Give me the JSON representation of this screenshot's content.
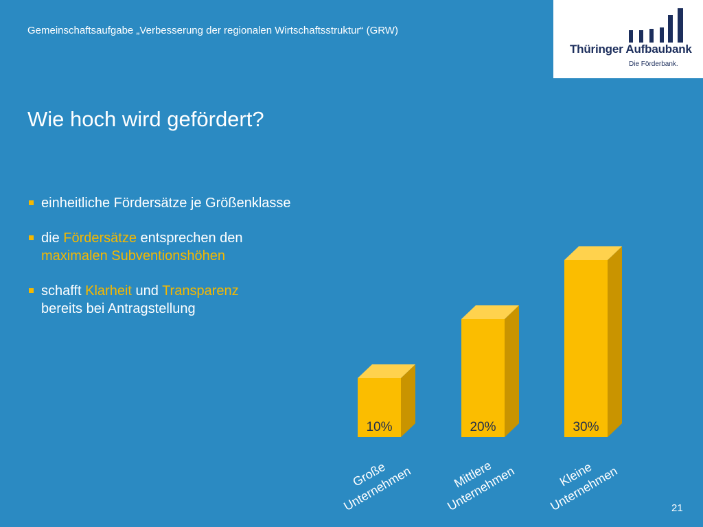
{
  "header": {
    "subtitle": "Gemeinschaftsaufgabe „Verbesserung der regionalen Wirtschaftsstruktur“ (GRW)"
  },
  "logo": {
    "name": "Thüringer Aufbaubank",
    "tagline": "Die Förderbank.",
    "color": "#1c2e5c"
  },
  "slide": {
    "title": "Wie hoch wird gefördert?",
    "page_number": "21"
  },
  "bullets": [
    {
      "parts": [
        "einheitliche Fördersätze je Größenklasse"
      ]
    },
    {
      "line1_pre": "die ",
      "line1_hl": "Fördersätze",
      "line1_post": " entsprechen den",
      "line2_hl": "maximalen Subventionshöhen"
    },
    {
      "line1_pre": "schafft ",
      "line1_hl1": "Klarheit",
      "line1_mid": " und ",
      "line1_hl2": "Transparenz",
      "line2": "bereits bei Antragstellung"
    }
  ],
  "colors": {
    "background": "#2b8ac2",
    "accent": "#f5b800",
    "bar_front": "#fbbd00",
    "bar_side": "#c99400",
    "bar_top": "#ffd24d"
  },
  "chart_data": {
    "type": "bar",
    "style": "3d-columns",
    "categories": [
      "Große Unternehmen",
      "Mittlere Unternehmen",
      "Kleine Unternehmen"
    ],
    "category_lines": [
      [
        "Große",
        "Unternehmen"
      ],
      [
        "Mittlere",
        "Unternehmen"
      ],
      [
        "Kleine",
        "Unternehmen"
      ]
    ],
    "values": [
      10,
      20,
      30
    ],
    "data_labels": [
      "10%",
      "20%",
      "30%"
    ],
    "unit": "%",
    "ylim": [
      0,
      30
    ],
    "grid": false,
    "legend": "none"
  }
}
